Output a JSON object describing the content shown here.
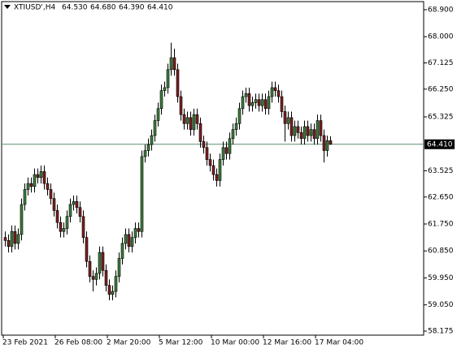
{
  "chart_data": {
    "type": "candlestick",
    "header": {
      "symbol": "XTIUSD',H4",
      "open": {
        "value": 64.53,
        "label": "64.530"
      },
      "high": {
        "value": 64.68,
        "label": "64.680"
      },
      "low": {
        "value": 64.39,
        "label": "64.390"
      },
      "close": {
        "value": 64.41,
        "label": "64.410"
      }
    },
    "open": [
      61.3,
      61.2,
      61.0,
      61.5,
      61.1,
      61.4,
      62.4,
      62.9,
      63.1,
      63.0,
      63.4,
      63.3,
      63.5,
      63.1,
      62.9,
      62.6,
      62.2,
      61.8,
      61.5,
      61.6,
      62.0,
      62.4,
      62.5,
      62.3,
      62.0,
      61.3,
      60.5,
      60.0,
      59.9,
      60.1,
      60.8,
      60.2,
      59.7,
      59.4,
      59.5,
      60.0,
      60.6,
      61.1,
      61.4,
      61.0,
      61.3,
      61.6,
      61.5,
      64.0,
      64.2,
      64.4,
      64.7,
      65.2,
      65.6,
      66.2,
      66.3,
      66.9,
      67.3,
      66.9,
      66.0,
      65.4,
      65.1,
      65.3,
      64.9,
      65.4,
      65.1,
      64.5,
      64.3,
      63.9,
      63.7,
      63.4,
      63.2,
      63.9,
      64.3,
      64.1,
      64.6,
      64.9,
      65.1,
      65.6,
      66.0,
      66.1,
      65.7,
      65.8,
      65.9,
      65.7,
      65.9,
      65.6,
      66.0,
      66.3,
      66.2,
      66.0,
      65.5,
      65.1,
      65.3,
      64.7,
      65.0,
      64.8,
      64.6,
      65.0,
      64.7,
      64.9,
      64.6,
      65.2,
      64.7,
      64.2,
      64.53
    ],
    "high": [
      61.5,
      61.4,
      61.7,
      61.7,
      61.6,
      62.6,
      63.1,
      63.3,
      63.3,
      63.6,
      63.6,
      63.7,
      63.7,
      63.3,
      63.1,
      62.8,
      62.4,
      62.0,
      61.8,
      62.2,
      62.6,
      62.7,
      62.7,
      62.5,
      62.2,
      61.5,
      60.7,
      60.2,
      60.3,
      61.0,
      61.0,
      60.4,
      59.9,
      59.7,
      60.2,
      60.8,
      61.3,
      61.6,
      61.6,
      61.5,
      61.8,
      61.8,
      64.2,
      64.4,
      64.6,
      64.9,
      65.4,
      65.8,
      66.4,
      66.5,
      67.1,
      67.8,
      67.6,
      67.1,
      66.2,
      65.6,
      65.5,
      65.5,
      65.6,
      65.6,
      65.3,
      64.7,
      64.5,
      64.1,
      63.9,
      63.6,
      64.1,
      64.5,
      64.5,
      64.8,
      65.1,
      65.3,
      65.8,
      66.2,
      66.3,
      66.3,
      66.0,
      66.1,
      66.1,
      66.1,
      66.1,
      66.2,
      66.5,
      66.5,
      66.4,
      66.2,
      65.7,
      65.5,
      65.5,
      65.2,
      65.2,
      65.0,
      65.2,
      65.2,
      65.1,
      65.1,
      65.4,
      65.4,
      64.9,
      64.7,
      64.68
    ],
    "low": [
      61.0,
      60.8,
      60.8,
      60.9,
      60.9,
      61.2,
      62.2,
      62.7,
      62.8,
      62.8,
      63.1,
      63.1,
      62.9,
      62.7,
      62.4,
      62.0,
      61.6,
      61.3,
      61.3,
      61.4,
      61.8,
      62.2,
      62.1,
      61.8,
      61.1,
      60.3,
      59.8,
      59.5,
      59.7,
      59.9,
      60.0,
      59.5,
      59.2,
      59.2,
      59.3,
      59.8,
      60.4,
      60.9,
      60.8,
      60.8,
      61.1,
      61.3,
      61.3,
      63.8,
      64.0,
      64.2,
      64.5,
      65.0,
      65.4,
      66.0,
      66.1,
      66.7,
      66.7,
      65.8,
      65.2,
      64.9,
      64.9,
      64.7,
      64.7,
      64.9,
      64.3,
      64.1,
      63.7,
      63.5,
      63.2,
      63.0,
      63.0,
      63.7,
      63.9,
      63.9,
      64.4,
      64.7,
      64.9,
      65.4,
      65.8,
      65.5,
      65.5,
      65.6,
      65.5,
      65.5,
      65.4,
      65.4,
      65.8,
      66.0,
      65.8,
      65.3,
      64.5,
      64.9,
      64.5,
      64.5,
      64.6,
      64.4,
      64.4,
      64.5,
      64.5,
      64.4,
      64.4,
      64.5,
      63.8,
      64.0,
      64.39
    ],
    "close": [
      61.2,
      61.0,
      61.5,
      61.1,
      61.4,
      62.4,
      62.9,
      63.1,
      63.0,
      63.4,
      63.3,
      63.5,
      63.1,
      62.9,
      62.6,
      62.2,
      61.8,
      61.5,
      61.6,
      62.0,
      62.4,
      62.5,
      62.3,
      62.0,
      61.3,
      60.5,
      60.0,
      59.9,
      60.1,
      60.8,
      60.2,
      59.7,
      59.4,
      59.5,
      60.0,
      60.6,
      61.1,
      61.4,
      61.0,
      61.3,
      61.6,
      61.5,
      64.0,
      64.2,
      64.4,
      64.7,
      65.2,
      65.6,
      66.2,
      66.3,
      66.9,
      67.3,
      66.9,
      66.0,
      65.4,
      65.1,
      65.3,
      64.9,
      65.4,
      65.1,
      64.5,
      64.3,
      63.9,
      63.7,
      63.4,
      63.2,
      63.9,
      64.3,
      64.1,
      64.6,
      64.9,
      65.1,
      65.6,
      66.0,
      66.1,
      65.7,
      65.8,
      65.9,
      65.7,
      65.9,
      65.6,
      66.0,
      66.3,
      66.2,
      66.0,
      65.5,
      65.1,
      65.3,
      64.7,
      65.0,
      64.8,
      64.6,
      65.0,
      64.7,
      64.9,
      64.6,
      65.2,
      64.7,
      64.2,
      64.53,
      64.41
    ],
    "colors": {
      "up": "#3c7d3c",
      "down": "#7a2020",
      "outline": "#000000",
      "price_line": "#5f8a6a"
    },
    "price_line": {
      "value": 64.41,
      "label": "64.410"
    },
    "ylim": [
      58.04,
      69.17
    ],
    "yticks": [
      {
        "value": 68.9,
        "label": "68.900"
      },
      {
        "value": 68.0,
        "label": "68.000"
      },
      {
        "value": 67.125,
        "label": "67.125"
      },
      {
        "value": 66.25,
        "label": "66.250"
      },
      {
        "value": 65.325,
        "label": "65.325"
      },
      {
        "value": 63.525,
        "label": "63.525"
      },
      {
        "value": 62.65,
        "label": "62.650"
      },
      {
        "value": 61.75,
        "label": "61.750"
      },
      {
        "value": 60.85,
        "label": "60.850"
      },
      {
        "value": 59.95,
        "label": "59.950"
      },
      {
        "value": 59.05,
        "label": "59.050"
      },
      {
        "value": 58.175,
        "label": "58.175"
      }
    ],
    "xticks": [
      {
        "value": 0,
        "label": "23 Feb 2021"
      },
      {
        "value": 16,
        "label": "26 Feb 08:00"
      },
      {
        "value": 32,
        "label": "2 Mar 20:00"
      },
      {
        "value": 48,
        "label": "5 Mar 12:00"
      },
      {
        "value": 64,
        "label": "10 Mar 00:00"
      },
      {
        "value": 80,
        "label": "12 Mar 16:00"
      },
      {
        "value": 96,
        "label": "17 Mar 04:00"
      }
    ]
  }
}
